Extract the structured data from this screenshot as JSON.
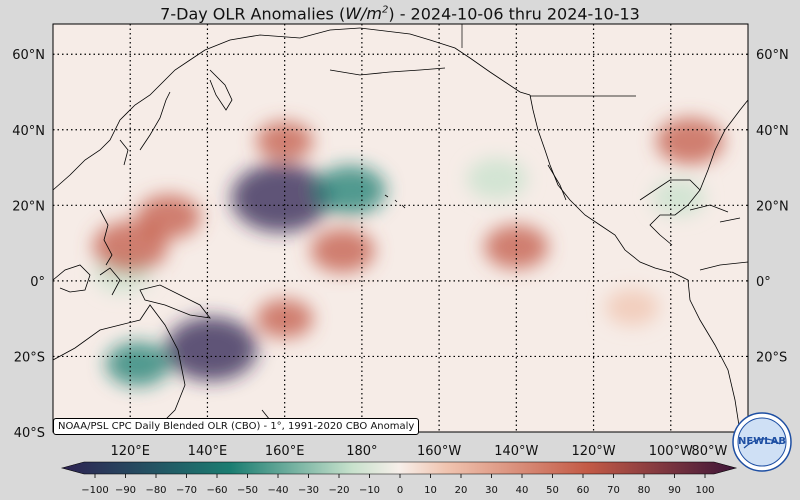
{
  "title": {
    "prefix": "7-Day OLR Anomalies (",
    "unit_main": "W/m",
    "unit_exp": "2",
    "suffix": ") - 2024-10-06 thru 2024-10-13"
  },
  "map": {
    "projection": "equirectangular",
    "lon_range": [
      100,
      280
    ],
    "lat_range": [
      -40,
      68
    ],
    "lat_labels_left": [
      "60°N",
      "40°N",
      "20°N",
      "0°",
      "20°S",
      "40°S"
    ],
    "lat_labels_right": [
      "60°N",
      "40°N",
      "20°N",
      "0°",
      "20°S"
    ],
    "lon_labels": [
      "120°E",
      "140°E",
      "160°E",
      "180°",
      "160°W",
      "140°W",
      "120°W",
      "100°W",
      "80°W"
    ],
    "gridlines": "dotted",
    "anomaly_regions": [
      {
        "lon": 159,
        "lat": 22,
        "value": -90
      },
      {
        "lon": 177,
        "lat": 24,
        "value": -50
      },
      {
        "lon": 141,
        "lat": -18,
        "value": -80
      },
      {
        "lon": 122,
        "lat": -22,
        "value": -40
      },
      {
        "lon": 215,
        "lat": 27,
        "value": -35
      },
      {
        "lon": 118,
        "lat": 2,
        "value": -30
      },
      {
        "lon": 262,
        "lat": 22,
        "value": -25
      },
      {
        "lon": 220,
        "lat": 9,
        "value": 40
      },
      {
        "lon": 130,
        "lat": 17,
        "value": 40
      },
      {
        "lon": 120,
        "lat": 9,
        "value": 55
      },
      {
        "lon": 175,
        "lat": 8,
        "value": 40
      },
      {
        "lon": 160,
        "lat": 37,
        "value": 30
      },
      {
        "lon": 265,
        "lat": 37,
        "value": 45
      },
      {
        "lon": 160,
        "lat": -10,
        "value": 30
      },
      {
        "lon": 250,
        "lat": -7,
        "value": 25
      }
    ]
  },
  "source_note": "NOAA/PSL CPC Daily Blended OLR (CBO) - 1°, 1991-2020 CBO Anomaly",
  "colorbar": {
    "ticks": [
      "−100",
      "−90",
      "−80",
      "−70",
      "−60",
      "−50",
      "−40",
      "−30",
      "−20",
      "−10",
      "0",
      "10",
      "20",
      "30",
      "40",
      "50",
      "60",
      "70",
      "80",
      "90",
      "100"
    ],
    "colors": {
      "neg_max": "#2e2252",
      "neg_mid": "#1b7d71",
      "neg_low": "#c7e1cc",
      "zero": "#f7efea",
      "pos_low": "#f0c4b0",
      "pos_mid": "#c35a46",
      "pos_max": "#3d1538"
    }
  },
  "logo": {
    "text": "NEWLAB"
  }
}
